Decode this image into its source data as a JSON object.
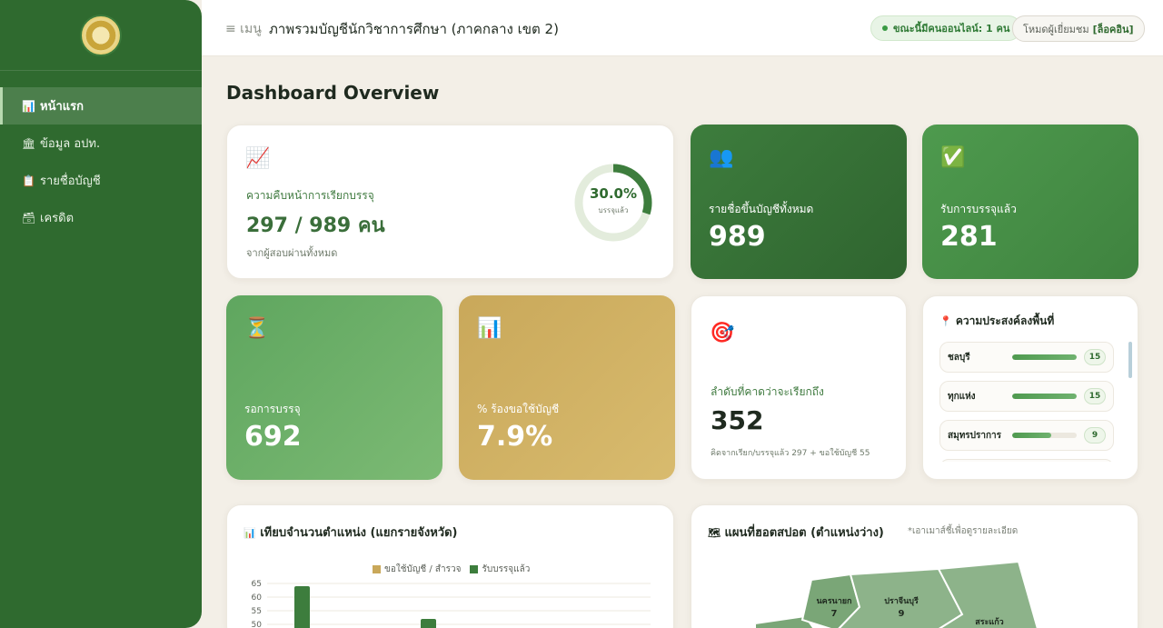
{
  "sidebar": {
    "items": [
      {
        "icon": "📊",
        "label": "หน้าแรก",
        "active": true
      },
      {
        "icon": "🏛",
        "label": "ข้อมูล อปท.",
        "active": false
      },
      {
        "icon": "📋",
        "label": "รายชื่อบัญชี",
        "active": false
      },
      {
        "icon": "🗃",
        "label": "เครดิต",
        "active": false
      }
    ]
  },
  "header": {
    "menu_label": "≡ เมนู",
    "title": "ภาพรวมบัญชีนักวิชาการศึกษา (ภาคกลาง เขต 2)",
    "online_text": "ขณะนี้มีคนออนไลน์: 1 คน",
    "mode_text": "โหมดผู้เยี่ยมชม",
    "login_text": "[ล็อคอิน]"
  },
  "main": {
    "title": "Dashboard Overview",
    "progress_card": {
      "icon": "📈",
      "label": "ความคืบหน้าการเรียกบรรจุ",
      "value": "297 / 989 คน",
      "sub": "จากผู้สอบผ่านทั้งหมด",
      "percent_text": "30.0%",
      "percent_value": 30.0,
      "percent_sub": "บรรจุแล้ว"
    },
    "stat_total": {
      "icon": "👥",
      "label": "รายชื่อขึ้นบัญชีทั้งหมด",
      "value": "989"
    },
    "stat_placed": {
      "icon": "✅",
      "label": "รับการบรรจุแล้ว",
      "value": "281"
    },
    "stat_waiting": {
      "icon": "⏳",
      "label": "รอการบรรจุ",
      "value": "692"
    },
    "stat_request": {
      "icon": "📊",
      "label": "% ร้องขอใช้บัญชี",
      "value": "7.9%"
    },
    "rank_card": {
      "icon": "🎯",
      "label": "ลำดับที่คาดว่าจะเรียกถึง",
      "value": "352",
      "note": "คิดจากเรียก/บรรจุแล้ว 297 + ขอใช้บัญชี 55"
    },
    "preference_card": {
      "icon": "📍",
      "title": "ความประสงค์ลงพื้นที่",
      "items": [
        {
          "name": "ชลบุรี",
          "count": "15",
          "fraction": 1.0
        },
        {
          "name": "ทุกแห่ง",
          "count": "15",
          "fraction": 1.0
        },
        {
          "name": "สมุทรปราการ",
          "count": "9",
          "fraction": 0.6
        },
        {
          "name": "",
          "count": "",
          "fraction": 0
        }
      ]
    },
    "chart_card": {
      "icon": "📊",
      "title": "เทียบจำนวนตำแหน่ง (แยกรายจังหวัด)"
    },
    "map_card": {
      "icon": "🗺",
      "title": "แผนที่ฮอตสปอต (ตำแหน่งว่าง)",
      "hint": "*เอาเมาส์ชี้เพื่อดูรายละเอียด",
      "regions": [
        {
          "name": "นครนายก",
          "value": "7"
        },
        {
          "name": "ปราจีนบุรี",
          "value": "9"
        },
        {
          "name": "สระแก้ว",
          "value": ""
        }
      ]
    }
  },
  "chart_data": {
    "type": "bar",
    "legend": [
      {
        "name": "ขอใช้บัญชี / สำรวจ",
        "color": "#c9a85a"
      },
      {
        "name": "รับบรรจุแล้ว",
        "color": "#3d7d3d"
      }
    ],
    "yticks": [
      65,
      60,
      55,
      50
    ],
    "ylim": [
      45,
      65
    ],
    "series": [
      {
        "name": "รับบรรจุแล้ว",
        "color": "#3d7d3d",
        "values": [
          64,
          52
        ]
      }
    ]
  },
  "colors": {
    "sidebar": "#2f6a2f",
    "accent": "#3d7d3d",
    "gold": "#c9a85a",
    "background": "#f3efe7"
  }
}
